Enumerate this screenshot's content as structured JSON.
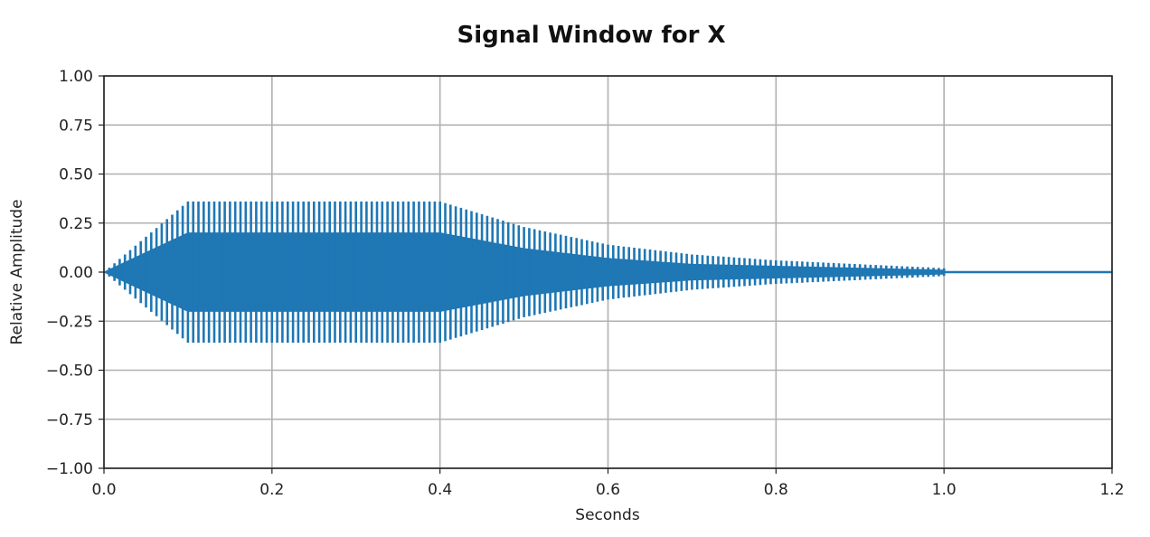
{
  "chart_data": {
    "type": "line",
    "title": "Signal Window for X",
    "xlabel": "Seconds",
    "ylabel": "Relative Amplitude",
    "xlim": [
      0.0,
      1.2
    ],
    "ylim": [
      -1.0,
      1.0
    ],
    "xticks": [
      "0.0",
      "0.2",
      "0.4",
      "0.6",
      "0.8",
      "1.0",
      "1.2"
    ],
    "yticks": [
      "1.00",
      "0.75",
      "0.50",
      "0.25",
      "0.00",
      "−0.25",
      "−0.50",
      "−0.75",
      "−1.00"
    ],
    "grid": true,
    "series": [
      {
        "color": "#1f77b4",
        "envelope": {
          "x": [
            0.0,
            0.1,
            0.4,
            0.5,
            0.6,
            0.7,
            0.8,
            0.9,
            1.0,
            1.2
          ],
          "peak": [
            0.0,
            0.36,
            0.36,
            0.23,
            0.14,
            0.09,
            0.06,
            0.04,
            0.02,
            0.0
          ],
          "inner": [
            0.0,
            0.2,
            0.2,
            0.12,
            0.07,
            0.04,
            0.03,
            0.02,
            0.01,
            0.0
          ]
        },
        "spike_spacing_s": 0.00625,
        "signal_end_s": 1.0
      }
    ]
  }
}
